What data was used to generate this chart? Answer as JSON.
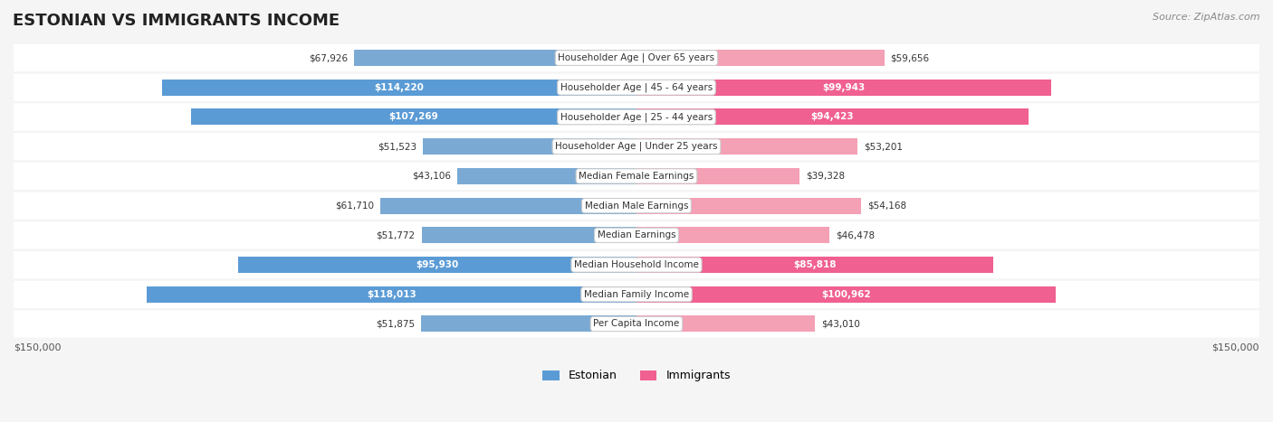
{
  "title": "ESTONIAN VS IMMIGRANTS INCOME",
  "source": "Source: ZipAtlas.com",
  "categories": [
    "Per Capita Income",
    "Median Family Income",
    "Median Household Income",
    "Median Earnings",
    "Median Male Earnings",
    "Median Female Earnings",
    "Householder Age | Under 25 years",
    "Householder Age | 25 - 44 years",
    "Householder Age | 45 - 64 years",
    "Householder Age | Over 65 years"
  ],
  "estonian": [
    51875,
    118013,
    95930,
    51772,
    61710,
    43106,
    51523,
    107269,
    114220,
    67926
  ],
  "immigrants": [
    43010,
    100962,
    85818,
    46478,
    54168,
    39328,
    53201,
    94423,
    99943,
    59656
  ],
  "max_val": 150000,
  "estonian_color": "#7aaad4",
  "estonian_color_bold": "#5b9bd5",
  "immigrants_color": "#f4a0b5",
  "immigrants_color_bold": "#f06090",
  "label_color_normal": "#555555",
  "label_color_bold": "#ffffff",
  "bg_color": "#f5f5f5",
  "row_bg": "#ffffff",
  "row_bg_alt": "#f0f0f0",
  "bold_threshold": 80000,
  "xlabel_left": "$150,000",
  "xlabel_right": "$150,000",
  "legend_estonian": "Estonian",
  "legend_immigrants": "Immigrants"
}
